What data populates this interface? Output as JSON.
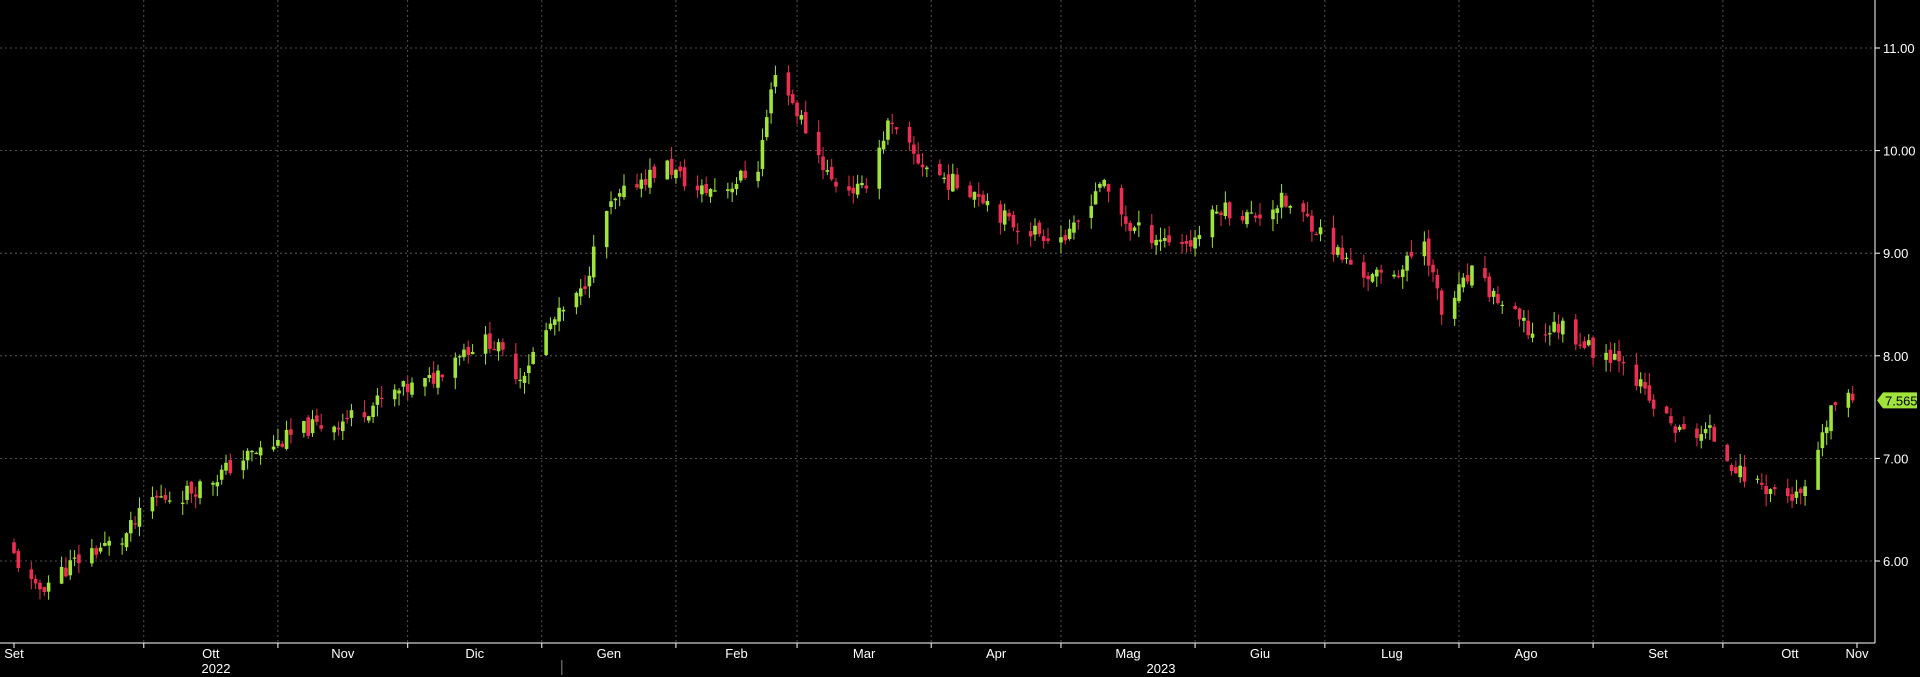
{
  "chart_data": {
    "type": "candlestick",
    "title": "",
    "xlabel": "",
    "ylabel": "",
    "ylim": [
      5.2,
      11.5
    ],
    "yticks": [
      "6.00",
      "7.00",
      "8.00",
      "9.00",
      "10.00",
      "11.00"
    ],
    "x_month_labels": [
      "Set",
      "Ott",
      "Nov",
      "Dic",
      "Gen",
      "Feb",
      "Mar",
      "Apr",
      "Mag",
      "Giu",
      "Lug",
      "Ago",
      "Set",
      "Ott",
      "Nov"
    ],
    "year_labels": [
      "2022",
      "2023"
    ],
    "last_price": "7.565",
    "grid": true,
    "colors": {
      "background": "#000000",
      "up": "#9fe33b",
      "down": "#ec2e52",
      "grid": "#8a8a8a",
      "axis_text": "#ffffff",
      "price_tag": "#9fe33b"
    },
    "close_path": [
      [
        "2022-09-01",
        6.05
      ],
      [
        "2022-09-06",
        5.7
      ],
      [
        "2022-09-12",
        5.9
      ],
      [
        "2022-09-19",
        6.1
      ],
      [
        "2022-09-26",
        6.2
      ],
      [
        "2022-10-03",
        6.6
      ],
      [
        "2022-10-10",
        6.65
      ],
      [
        "2022-10-17",
        6.8
      ],
      [
        "2022-10-24",
        7.0
      ],
      [
        "2022-11-01",
        7.15
      ],
      [
        "2022-11-08",
        7.3
      ],
      [
        "2022-11-15",
        7.35
      ],
      [
        "2022-11-22",
        7.5
      ],
      [
        "2022-11-29",
        7.65
      ],
      [
        "2022-12-06",
        7.75
      ],
      [
        "2022-12-13",
        8.05
      ],
      [
        "2022-12-20",
        8.15
      ],
      [
        "2022-12-27",
        7.8
      ],
      [
        "2023-01-03",
        8.3
      ],
      [
        "2023-01-10",
        8.6
      ],
      [
        "2023-01-16",
        9.4
      ],
      [
        "2023-01-23",
        9.7
      ],
      [
        "2023-01-30",
        9.85
      ],
      [
        "2023-02-06",
        9.6
      ],
      [
        "2023-02-13",
        9.65
      ],
      [
        "2023-02-20",
        9.85
      ],
      [
        "2023-02-24",
        10.8
      ],
      [
        "2023-03-02",
        10.3
      ],
      [
        "2023-03-09",
        9.7
      ],
      [
        "2023-03-16",
        9.6
      ],
      [
        "2023-03-22",
        10.25
      ],
      [
        "2023-03-29",
        9.9
      ],
      [
        "2023-04-05",
        9.7
      ],
      [
        "2023-04-12",
        9.6
      ],
      [
        "2023-04-19",
        9.3
      ],
      [
        "2023-04-26",
        9.2
      ],
      [
        "2023-05-03",
        9.15
      ],
      [
        "2023-05-10",
        9.7
      ],
      [
        "2023-05-17",
        9.25
      ],
      [
        "2023-05-24",
        9.15
      ],
      [
        "2023-05-31",
        9.1
      ],
      [
        "2023-06-07",
        9.45
      ],
      [
        "2023-06-14",
        9.35
      ],
      [
        "2023-06-21",
        9.5
      ],
      [
        "2023-06-28",
        9.3
      ],
      [
        "2023-07-05",
        8.95
      ],
      [
        "2023-07-12",
        8.75
      ],
      [
        "2023-07-19",
        8.85
      ],
      [
        "2023-07-24",
        9.15
      ],
      [
        "2023-07-28",
        8.4
      ],
      [
        "2023-08-04",
        8.8
      ],
      [
        "2023-08-11",
        8.5
      ],
      [
        "2023-08-18",
        8.2
      ],
      [
        "2023-08-25",
        8.3
      ],
      [
        "2023-09-01",
        8.05
      ],
      [
        "2023-09-08",
        8.0
      ],
      [
        "2023-09-14",
        7.55
      ],
      [
        "2023-09-21",
        7.25
      ],
      [
        "2023-09-28",
        7.25
      ],
      [
        "2023-10-05",
        6.85
      ],
      [
        "2023-10-12",
        6.7
      ],
      [
        "2023-10-19",
        6.6
      ],
      [
        "2023-10-23",
        7.0
      ],
      [
        "2023-10-26",
        7.5
      ],
      [
        "2023-10-31",
        7.565
      ]
    ]
  }
}
